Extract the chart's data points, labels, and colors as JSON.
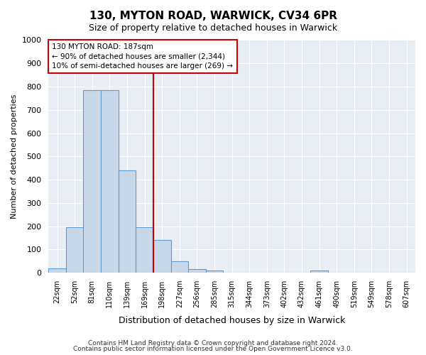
{
  "title": "130, MYTON ROAD, WARWICK, CV34 6PR",
  "subtitle": "Size of property relative to detached houses in Warwick",
  "xlabel": "Distribution of detached houses by size in Warwick",
  "ylabel": "Number of detached properties",
  "bar_labels": [
    "22sqm",
    "52sqm",
    "81sqm",
    "110sqm",
    "139sqm",
    "169sqm",
    "198sqm",
    "227sqm",
    "256sqm",
    "285sqm",
    "315sqm",
    "344sqm",
    "373sqm",
    "402sqm",
    "432sqm",
    "461sqm",
    "490sqm",
    "519sqm",
    "549sqm",
    "578sqm",
    "607sqm"
  ],
  "bar_values": [
    20,
    195,
    785,
    785,
    440,
    195,
    140,
    50,
    15,
    10,
    0,
    0,
    0,
    0,
    0,
    10,
    0,
    0,
    0,
    0,
    0
  ],
  "bar_color": "#c8d8e8",
  "bar_edgecolor": "#5b9bd5",
  "vline_color": "#cc0000",
  "vline_x_index": 6,
  "ylim": [
    0,
    1000
  ],
  "yticks": [
    0,
    100,
    200,
    300,
    400,
    500,
    600,
    700,
    800,
    900,
    1000
  ],
  "annotation_title": "130 MYTON ROAD: 187sqm",
  "annotation_line1": "← 90% of detached houses are smaller (2,344)",
  "annotation_line2": "10% of semi-detached houses are larger (269) →",
  "annotation_box_edgecolor": "#cc0000",
  "footer_line1": "Contains HM Land Registry data © Crown copyright and database right 2024.",
  "footer_line2": "Contains public sector information licensed under the Open Government Licence v3.0.",
  "bg_color": "#ffffff",
  "plot_bg_color": "#e8eef4",
  "grid_color": "#ffffff",
  "title_fontsize": 11,
  "subtitle_fontsize": 9,
  "ylabel_fontsize": 8,
  "xlabel_fontsize": 9
}
